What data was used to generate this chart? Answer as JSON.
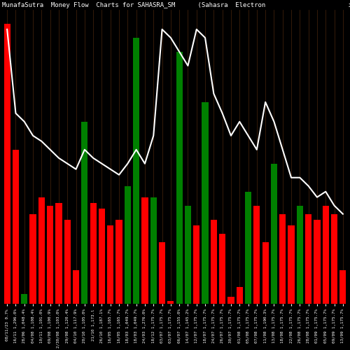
{
  "title": "MunafaSutra  Money Flow  Charts for SAHASRA_SM      (Sahasra  Electron                      ic Solu  L) N",
  "background_color": "#000000",
  "bar_colors": [
    "red",
    "red",
    "green",
    "red",
    "red",
    "red",
    "red",
    "red",
    "red",
    "green",
    "red",
    "red",
    "red",
    "red",
    "green",
    "green",
    "red",
    "green",
    "red",
    "red",
    "green",
    "green",
    "red",
    "green",
    "red",
    "red",
    "red",
    "red",
    "green",
    "red",
    "red",
    "green",
    "red",
    "red",
    "green",
    "red",
    "red",
    "red",
    "red",
    "red"
  ],
  "bar_heights": [
    10.0,
    5.5,
    0.35,
    3.2,
    3.8,
    3.5,
    3.6,
    3.0,
    1.2,
    6.5,
    3.6,
    3.4,
    2.8,
    3.0,
    4.2,
    9.5,
    3.8,
    3.8,
    2.2,
    0.08,
    9.0,
    3.5,
    2.8,
    7.2,
    3.0,
    2.5,
    0.25,
    0.6,
    4.0,
    3.5,
    2.2,
    5.0,
    3.2,
    2.8,
    3.5,
    3.2,
    3.0,
    3.5,
    3.2,
    1.2
  ],
  "line_values": [
    9.8,
    6.8,
    6.5,
    6.0,
    5.8,
    5.5,
    5.2,
    5.0,
    4.8,
    5.5,
    5.2,
    5.0,
    4.8,
    4.6,
    5.0,
    5.5,
    5.0,
    6.0,
    9.8,
    9.5,
    9.0,
    8.5,
    9.8,
    9.5,
    7.5,
    6.8,
    6.0,
    6.5,
    6.0,
    5.5,
    7.2,
    6.5,
    5.5,
    4.5,
    4.5,
    4.2,
    3.8,
    4.0,
    3.5,
    3.2
  ],
  "labels": [
    "08/11/23 0.7%",
    "16/11 1,296.0%",
    "28/06 1,048.4%",
    "04/08 1,108.4%",
    "10/11 1,101.0%",
    "09/08 1,100.9%",
    "2/30/08 1,103.0%",
    "29/08 1,120.4%",
    "04/10 1,117.9%",
    "20/10 1,105.0%",
    "21/10 1,173.l",
    "26/10 1,187.1%",
    "16/05 1,165.7%",
    "16/05 1,165.7%",
    "18/03 1,049.7%",
    "18/03 1,049.7%",
    "24/03 1,276.0%",
    "18/12 1,175.7%",
    "03/07 1,175.7%",
    "03/07 1,175.7%",
    "06/07 1,155.0%",
    "14/07 1,145.2%",
    "12/07 1,175.7%",
    "18/07 1,175.7%",
    "24/07 1,175.7%",
    "26/07 1,175.7%",
    "30/07 1,175.7%",
    "01/08 1,175.7%",
    "05/08 1,175.7%",
    "07/08 1,175.7%",
    "11/08 1,190.3%",
    "13/08 1,175.7%",
    "18/08 1,175.7%",
    "22/08 1,175.7%",
    "26/08 1,175.7%",
    "28/08 1,175.7%",
    "01/09 1,175.7%",
    "05/09 1,175.7%",
    "09/09 1,175.7%",
    "13/09 1,175.7%"
  ],
  "ylim": [
    0,
    10.5
  ],
  "bar_width": 0.75,
  "title_fontsize": 6.5,
  "label_fontsize": 4.2,
  "line_color": "#ffffff",
  "separator_color": "#8B4513",
  "grid_color": "#5c3010"
}
